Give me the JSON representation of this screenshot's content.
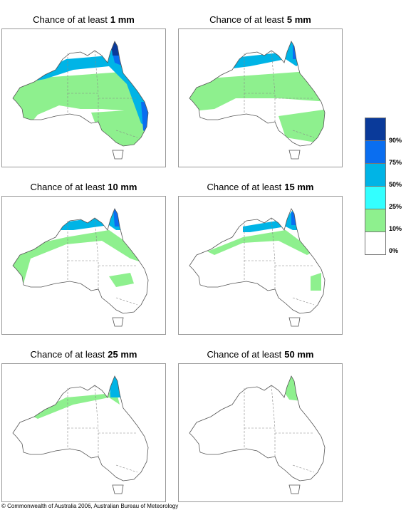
{
  "panels": [
    {
      "title": "Chance of at least",
      "amount": "1 mm"
    },
    {
      "title": "Chance of at least",
      "amount": "5 mm"
    },
    {
      "title": "Chance of at least",
      "amount": "10 mm"
    },
    {
      "title": "Chance of at least",
      "amount": "15 mm"
    },
    {
      "title": "Chance of at least",
      "amount": "25 mm"
    },
    {
      "title": "Chance of at least",
      "amount": "50 mm"
    }
  ],
  "legend": {
    "labels": [
      "90%",
      "75%",
      "50%",
      "25%",
      "10%",
      "0%"
    ]
  },
  "footer": "© Commonwealth of Australia 2006, Australian Bureau of Meteorology"
}
